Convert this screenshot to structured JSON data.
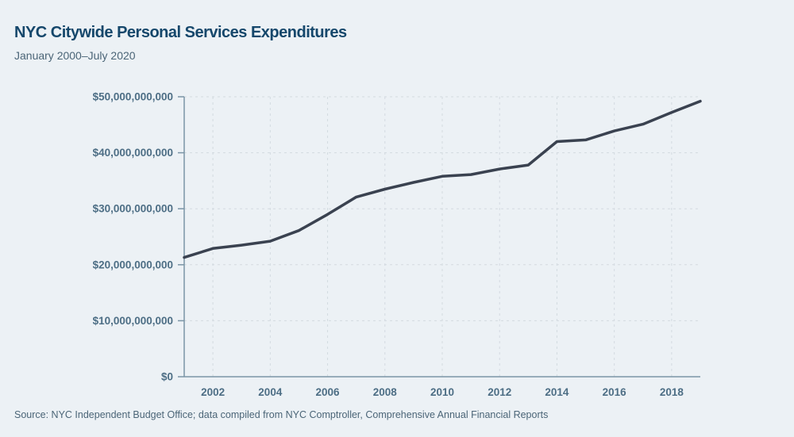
{
  "header": {
    "title": "NYC Citywide Personal Services Expenditures",
    "subtitle": "January 2000–July 2020"
  },
  "footer": {
    "source": "Source: NYC Independent Budget Office; data compiled from NYC Comptroller, Comprehensive Annual Financial Reports"
  },
  "colors": {
    "background": "#ecf1f5",
    "title": "#15476b",
    "subtitle": "#4b6577",
    "line": "#3a4250",
    "axis": "#7b95a6",
    "grid": "#d3dae0",
    "tick_label": "#4d6e85"
  },
  "chart_data": {
    "type": "line",
    "title": "NYC Citywide Personal Services Expenditures",
    "subtitle": "January 2000–July 2020",
    "xlabel": "",
    "ylabel": "",
    "x": [
      2001,
      2002,
      2003,
      2004,
      2005,
      2006,
      2007,
      2008,
      2009,
      2010,
      2011,
      2012,
      2013,
      2014,
      2015,
      2016,
      2017,
      2018,
      2019
    ],
    "series": [
      {
        "name": "Personal Services Expenditures",
        "values": [
          21300000000,
          22900000000,
          23500000000,
          24200000000,
          26100000000,
          29000000000,
          32100000000,
          33500000000,
          34700000000,
          35800000000,
          36100000000,
          37100000000,
          37800000000,
          42000000000,
          42300000000,
          43900000000,
          45100000000,
          47200000000,
          49200000000
        ]
      }
    ],
    "xlim": [
      2001,
      2019
    ],
    "ylim": [
      0,
      50000000000
    ],
    "x_ticks": [
      2002,
      2004,
      2006,
      2008,
      2010,
      2012,
      2014,
      2016,
      2018
    ],
    "y_ticks": [
      0,
      10000000000,
      20000000000,
      30000000000,
      40000000000,
      50000000000
    ],
    "y_tick_prefix": "$",
    "grid": true,
    "grid_style": "dashed",
    "legend": false,
    "line_color": "#3a4250"
  }
}
